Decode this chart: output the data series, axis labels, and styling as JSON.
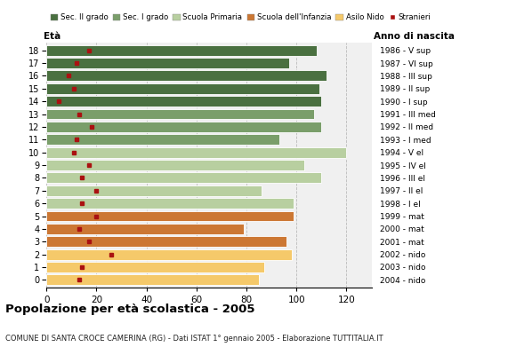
{
  "ages": [
    18,
    17,
    16,
    15,
    14,
    13,
    12,
    11,
    10,
    9,
    8,
    7,
    6,
    5,
    4,
    3,
    2,
    1,
    0
  ],
  "years": [
    "1986 - V sup",
    "1987 - VI sup",
    "1988 - III sup",
    "1989 - II sup",
    "1990 - I sup",
    "1991 - III med",
    "1992 - II med",
    "1993 - I med",
    "1994 - V el",
    "1995 - IV el",
    "1996 - III el",
    "1997 - II el",
    "1998 - I el",
    "1999 - mat",
    "2000 - mat",
    "2001 - mat",
    "2002 - nido",
    "2003 - nido",
    "2004 - nido"
  ],
  "bar_values": [
    108,
    97,
    112,
    109,
    110,
    107,
    110,
    93,
    120,
    103,
    110,
    86,
    99,
    99,
    79,
    96,
    98,
    87,
    85
  ],
  "bar_colors": [
    "#4a7040",
    "#4a7040",
    "#4a7040",
    "#4a7040",
    "#4a7040",
    "#7a9e6a",
    "#7a9e6a",
    "#7a9e6a",
    "#b8cfa0",
    "#b8cfa0",
    "#b8cfa0",
    "#b8cfa0",
    "#b8cfa0",
    "#cc7733",
    "#cc7733",
    "#cc7733",
    "#f5c96a",
    "#f5c96a",
    "#f5c96a"
  ],
  "stranieri_values": [
    17,
    12,
    9,
    11,
    5,
    13,
    18,
    12,
    11,
    17,
    14,
    20,
    14,
    20,
    13,
    17,
    26,
    14,
    13
  ],
  "legend_labels": [
    "Sec. II grado",
    "Sec. I grado",
    "Scuola Primaria",
    "Scuola dell'Infanzia",
    "Asilo Nido",
    "Stranieri"
  ],
  "legend_colors": [
    "#4a7040",
    "#7a9e6a",
    "#b8cfa0",
    "#cc7733",
    "#f5c96a",
    "#aa1111"
  ],
  "title": "Popolazione per età scolastica - 2005",
  "subtitle": "COMUNE DI SANTA CROCE CAMERINA (RG) - Dati ISTAT 1° gennaio 2005 - Elaborazione TUTTITALIA.IT",
  "label_eta": "Età",
  "label_anno": "Anno di nascita",
  "xlim": [
    0,
    130
  ],
  "xticks": [
    0,
    20,
    40,
    60,
    80,
    100,
    120
  ],
  "bg_color": "#f0f0f0",
  "bar_height": 0.82
}
